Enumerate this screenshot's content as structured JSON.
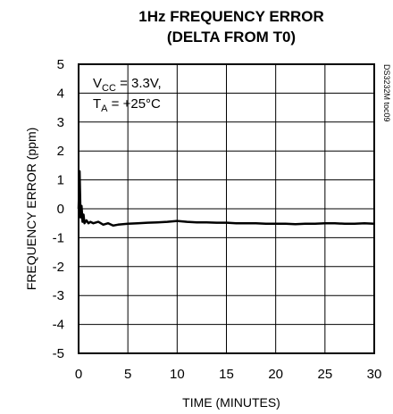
{
  "chart_data": {
    "type": "line",
    "title": [
      "1Hz FREQUENCY ERROR",
      "(DELTA FROM T0)"
    ],
    "xlabel": "TIME (MINUTES)",
    "ylabel": "FREQUENCY ERROR (ppm)",
    "xlim": [
      0,
      30
    ],
    "ylim": [
      -5,
      5
    ],
    "xticks": [
      0,
      5,
      10,
      15,
      20,
      25,
      30
    ],
    "yticks": [
      -5,
      -4,
      -3,
      -2,
      -1,
      0,
      1,
      2,
      3,
      4,
      5
    ],
    "grid": true,
    "annotation": {
      "line1_main": "V",
      "line1_sub": "CC",
      "line1_rest": " = 3.3V,",
      "line2_main": "T",
      "line2_sub": "A",
      "line2_rest": " = +25°C"
    },
    "side_label": "DS3232M toc09",
    "series": [
      {
        "x": [
          0.0,
          0.1,
          0.2,
          0.3,
          0.4,
          0.5,
          0.6,
          0.8,
          1.0,
          1.2,
          1.5,
          2.0,
          2.5,
          3.0,
          3.5,
          4.0,
          5.0,
          6.0,
          7.0,
          8.0,
          9.0,
          10.0,
          11.0,
          12.0,
          13.0,
          14.0,
          15.0,
          16.0,
          17.0,
          18.0,
          19.0,
          20.0,
          21.0,
          22.0,
          23.0,
          24.0,
          25.0,
          26.0,
          27.0,
          28.0,
          29.0,
          30.0
        ],
        "y": [
          0.0,
          1.3,
          -0.3,
          0.1,
          -0.45,
          -0.2,
          -0.5,
          -0.4,
          -0.5,
          -0.45,
          -0.5,
          -0.45,
          -0.55,
          -0.5,
          -0.58,
          -0.55,
          -0.52,
          -0.5,
          -0.48,
          -0.47,
          -0.45,
          -0.42,
          -0.45,
          -0.47,
          -0.47,
          -0.48,
          -0.48,
          -0.5,
          -0.5,
          -0.5,
          -0.52,
          -0.52,
          -0.52,
          -0.53,
          -0.52,
          -0.52,
          -0.5,
          -0.5,
          -0.52,
          -0.52,
          -0.5,
          -0.52
        ]
      }
    ]
  }
}
